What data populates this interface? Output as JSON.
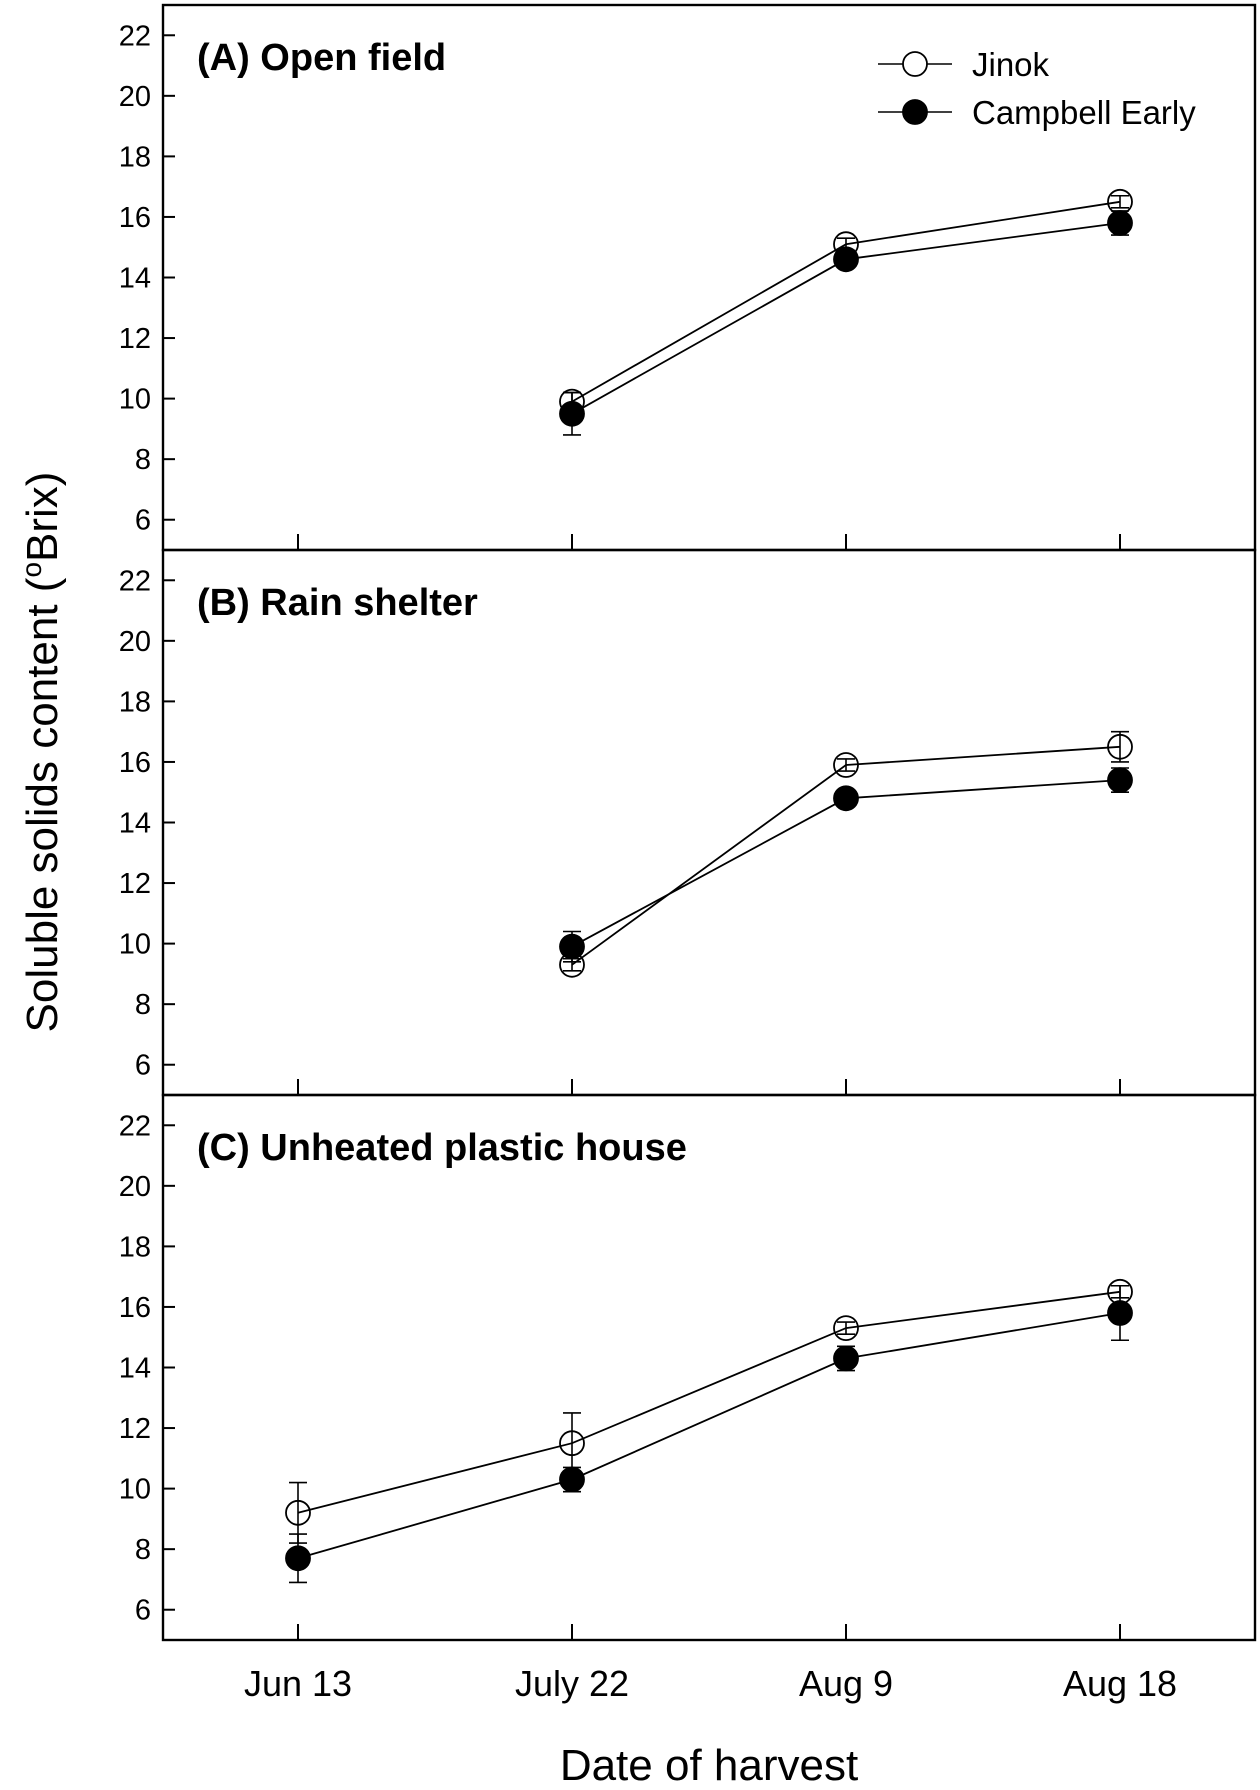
{
  "chart_data": {
    "type": "line",
    "ylabel_main": "Soluble solids content (",
    "ylabel_sup": "o",
    "ylabel_end": "Brix)",
    "xlabel": "Date of harvest",
    "categories": [
      "Jun 13",
      "July 22",
      "Aug 9",
      "Aug 18"
    ],
    "ylim": [
      5,
      23
    ],
    "yticks": [
      6,
      8,
      10,
      12,
      14,
      16,
      18,
      20,
      22
    ],
    "legend": {
      "position": "top-right",
      "entries": [
        {
          "name": "Jinok",
          "marker": "open-circle"
        },
        {
          "name": "Campbell Early",
          "marker": "filled-circle"
        }
      ]
    },
    "panels": [
      {
        "title": "(A) Open field",
        "series": [
          {
            "name": "Jinok",
            "marker": "open",
            "values": [
              null,
              9.9,
              15.1,
              16.5
            ],
            "err": [
              null,
              0.3,
              0.2,
              0.2
            ]
          },
          {
            "name": "Campbell Early",
            "marker": "filled",
            "values": [
              null,
              9.5,
              14.6,
              15.8
            ],
            "err": [
              null,
              0.7,
              0.2,
              0.4
            ]
          }
        ]
      },
      {
        "title": "(B) Rain shelter",
        "series": [
          {
            "name": "Jinok",
            "marker": "open",
            "values": [
              null,
              9.3,
              15.9,
              16.5
            ],
            "err": [
              null,
              0.2,
              0.2,
              0.5
            ]
          },
          {
            "name": "Campbell Early",
            "marker": "filled",
            "values": [
              null,
              9.9,
              14.8,
              15.4
            ],
            "err": [
              null,
              0.5,
              0.2,
              0.4
            ]
          }
        ]
      },
      {
        "title": "(C) Unheated plastic house",
        "series": [
          {
            "name": "Jinok",
            "marker": "open",
            "values": [
              9.2,
              11.5,
              15.3,
              16.5
            ],
            "err": [
              1.0,
              1.0,
              0.2,
              0.2
            ]
          },
          {
            "name": "Campbell Early",
            "marker": "filled",
            "values": [
              7.7,
              10.3,
              14.3,
              15.8
            ],
            "err": [
              0.8,
              0.4,
              0.4,
              0.9
            ]
          }
        ]
      }
    ]
  }
}
